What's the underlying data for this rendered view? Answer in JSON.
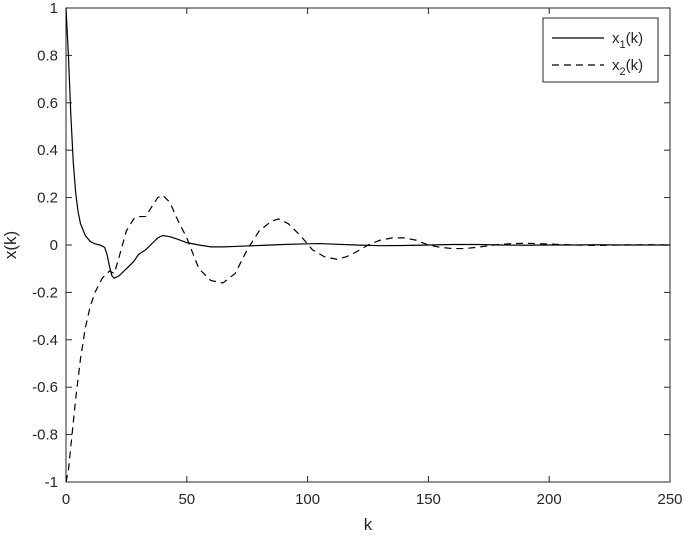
{
  "chart_data": {
    "type": "line",
    "xlabel": "k",
    "ylabel": "x(k)",
    "xlim": [
      0,
      250
    ],
    "ylim": [
      -1,
      1
    ],
    "xticks": [
      "0",
      "50",
      "100",
      "150",
      "200",
      "250"
    ],
    "yticks": [
      "-1",
      "-0.8",
      "-0.6",
      "-0.4",
      "-0.2",
      "0",
      "0.2",
      "0.4",
      "0.6",
      "0.8",
      "1"
    ],
    "grid": false,
    "legend_position": "top-right",
    "series": [
      {
        "name": "x1(k)",
        "legend_main": "x",
        "legend_sub": "1",
        "legend_suffix": "(k)",
        "style": "solid",
        "color": "#000000",
        "x": [
          0,
          1,
          2,
          3,
          4,
          5,
          6,
          8,
          10,
          12,
          14,
          16,
          17,
          18,
          19,
          20,
          22,
          25,
          28,
          30,
          33,
          36,
          38,
          40,
          43,
          46,
          50,
          55,
          60,
          65,
          70,
          75,
          80,
          90,
          100,
          105,
          110,
          120,
          130,
          140,
          150,
          160,
          170,
          180,
          190,
          200,
          210,
          220,
          230,
          240,
          250
        ],
        "y": [
          1.0,
          0.8,
          0.55,
          0.35,
          0.22,
          0.14,
          0.09,
          0.04,
          0.015,
          0.005,
          0.0,
          -0.01,
          -0.04,
          -0.09,
          -0.13,
          -0.14,
          -0.13,
          -0.1,
          -0.07,
          -0.04,
          -0.02,
          0.01,
          0.03,
          0.04,
          0.035,
          0.025,
          0.01,
          0.0,
          -0.008,
          -0.008,
          -0.006,
          -0.004,
          -0.002,
          0.002,
          0.005,
          0.006,
          0.004,
          0.0,
          -0.003,
          -0.002,
          0.0,
          0.002,
          0.002,
          0.0,
          -0.001,
          0.0,
          0.0,
          0.001,
          0.0,
          0.0,
          0.0
        ]
      },
      {
        "name": "x2(k)",
        "legend_main": "x",
        "legend_sub": "2",
        "legend_suffix": "(k)",
        "style": "dashed",
        "color": "#000000",
        "x": [
          0,
          1,
          2,
          4,
          6,
          8,
          10,
          12,
          15,
          18,
          20,
          22,
          25,
          28,
          30,
          33,
          36,
          38,
          40,
          43,
          46,
          50,
          55,
          60,
          65,
          70,
          75,
          80,
          85,
          88,
          92,
          97,
          102,
          107,
          112,
          116,
          120,
          125,
          130,
          135,
          140,
          145,
          150,
          155,
          160,
          165,
          170,
          175,
          180,
          185,
          190,
          195,
          200,
          210,
          220,
          230,
          240,
          250
        ],
        "y": [
          -1.0,
          -0.95,
          -0.85,
          -0.65,
          -0.48,
          -0.35,
          -0.26,
          -0.2,
          -0.14,
          -0.11,
          -0.12,
          -0.05,
          0.06,
          0.11,
          0.12,
          0.12,
          0.17,
          0.2,
          0.21,
          0.18,
          0.11,
          0.03,
          -0.1,
          -0.15,
          -0.16,
          -0.12,
          -0.02,
          0.06,
          0.1,
          0.11,
          0.09,
          0.04,
          -0.02,
          -0.05,
          -0.06,
          -0.05,
          -0.03,
          0.0,
          0.02,
          0.03,
          0.03,
          0.02,
          0.0,
          -0.01,
          -0.015,
          -0.015,
          -0.01,
          -0.003,
          0.003,
          0.006,
          0.007,
          0.006,
          0.004,
          0.0,
          -0.002,
          0.0,
          0.001,
          0.0
        ]
      }
    ]
  }
}
